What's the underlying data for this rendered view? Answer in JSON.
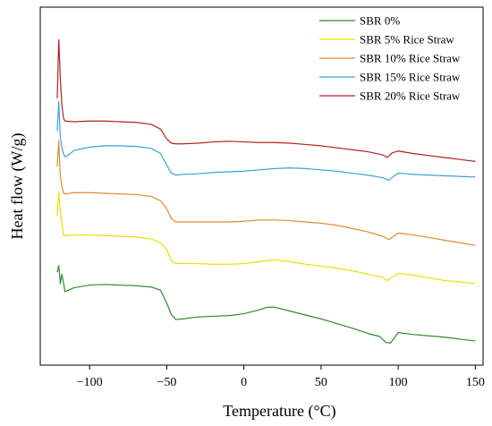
{
  "chart_data": {
    "type": "line",
    "title": "",
    "xlabel": "Temperature (°C)",
    "ylabel": "Heat flow (W/g)",
    "xlim": [
      -132,
      155
    ],
    "y_ticks_shown": false,
    "x_ticks": [
      -100,
      -50,
      0,
      50,
      100,
      150
    ],
    "legend_position": "top-right",
    "grid": false,
    "series": [
      {
        "name": "SBR 0%",
        "color": "#2e8b2e",
        "points": [
          [
            -121,
            0.66
          ],
          [
            -120,
            0.86
          ],
          [
            -119,
            0.3
          ],
          [
            -118,
            0.6
          ],
          [
            -117,
            0.35
          ],
          [
            -116,
            0.06
          ],
          [
            -110,
            0.18
          ],
          [
            -100,
            0.26
          ],
          [
            -90,
            0.28
          ],
          [
            -80,
            0.26
          ],
          [
            -70,
            0.24
          ],
          [
            -60,
            0.2
          ],
          [
            -54,
            0.1
          ],
          [
            -50,
            -0.3
          ],
          [
            -47,
            -0.65
          ],
          [
            -44,
            -0.8
          ],
          [
            -40,
            -0.78
          ],
          [
            -30,
            -0.72
          ],
          [
            -20,
            -0.7
          ],
          [
            -10,
            -0.68
          ],
          [
            0,
            -0.62
          ],
          [
            10,
            -0.5
          ],
          [
            15,
            -0.42
          ],
          [
            20,
            -0.42
          ],
          [
            30,
            -0.54
          ],
          [
            40,
            -0.66
          ],
          [
            50,
            -0.78
          ],
          [
            60,
            -0.92
          ],
          [
            70,
            -1.06
          ],
          [
            80,
            -1.22
          ],
          [
            88,
            -1.32
          ],
          [
            92,
            -1.5
          ],
          [
            95,
            -1.52
          ],
          [
            97,
            -1.4
          ],
          [
            100,
            -1.2
          ],
          [
            110,
            -1.26
          ],
          [
            120,
            -1.3
          ],
          [
            130,
            -1.34
          ],
          [
            140,
            -1.4
          ],
          [
            150,
            -1.46
          ]
        ]
      },
      {
        "name": "SBR 5% Rice Straw",
        "color": "#e8e000",
        "points": [
          [
            -121,
            2.4
          ],
          [
            -120,
            3.1
          ],
          [
            -119,
            2.5
          ],
          [
            -118,
            2.2
          ],
          [
            -117,
            1.8
          ],
          [
            -116,
            1.78
          ],
          [
            -110,
            1.8
          ],
          [
            -100,
            1.8
          ],
          [
            -90,
            1.78
          ],
          [
            -80,
            1.76
          ],
          [
            -70,
            1.74
          ],
          [
            -60,
            1.68
          ],
          [
            -54,
            1.55
          ],
          [
            -50,
            1.35
          ],
          [
            -47,
            1.0
          ],
          [
            -44,
            0.92
          ],
          [
            -40,
            0.92
          ],
          [
            -30,
            0.92
          ],
          [
            -20,
            0.9
          ],
          [
            -10,
            0.9
          ],
          [
            0,
            0.92
          ],
          [
            10,
            0.98
          ],
          [
            20,
            1.04
          ],
          [
            30,
            0.98
          ],
          [
            40,
            0.9
          ],
          [
            50,
            0.84
          ],
          [
            60,
            0.78
          ],
          [
            70,
            0.7
          ],
          [
            80,
            0.6
          ],
          [
            90,
            0.5
          ],
          [
            93,
            0.4
          ],
          [
            96,
            0.5
          ],
          [
            100,
            0.62
          ],
          [
            110,
            0.56
          ],
          [
            120,
            0.48
          ],
          [
            130,
            0.4
          ],
          [
            140,
            0.36
          ],
          [
            150,
            0.3
          ]
        ]
      },
      {
        "name": "SBR 10% Rice Straw",
        "color": "#e08a30",
        "points": [
          [
            -121,
            3.9
          ],
          [
            -120,
            4.7
          ],
          [
            -119,
            3.6
          ],
          [
            -118,
            3.3
          ],
          [
            -117,
            3.1
          ],
          [
            -116,
            3.06
          ],
          [
            -110,
            3.1
          ],
          [
            -100,
            3.1
          ],
          [
            -90,
            3.08
          ],
          [
            -80,
            3.06
          ],
          [
            -70,
            3.04
          ],
          [
            -60,
            2.98
          ],
          [
            -54,
            2.85
          ],
          [
            -50,
            2.6
          ],
          [
            -47,
            2.3
          ],
          [
            -44,
            2.2
          ],
          [
            -40,
            2.2
          ],
          [
            -30,
            2.2
          ],
          [
            -20,
            2.2
          ],
          [
            -10,
            2.2
          ],
          [
            0,
            2.22
          ],
          [
            10,
            2.26
          ],
          [
            20,
            2.26
          ],
          [
            30,
            2.24
          ],
          [
            40,
            2.2
          ],
          [
            50,
            2.16
          ],
          [
            60,
            2.1
          ],
          [
            70,
            2.0
          ],
          [
            80,
            1.9
          ],
          [
            90,
            1.76
          ],
          [
            94,
            1.66
          ],
          [
            97,
            1.76
          ],
          [
            100,
            1.86
          ],
          [
            110,
            1.8
          ],
          [
            120,
            1.72
          ],
          [
            130,
            1.64
          ],
          [
            140,
            1.56
          ],
          [
            150,
            1.48
          ]
        ]
      },
      {
        "name": "SBR 15% Rice Straw",
        "color": "#3ba3dc",
        "points": [
          [
            -121,
            5.0
          ],
          [
            -120,
            5.9
          ],
          [
            -119,
            4.8
          ],
          [
            -118,
            4.5
          ],
          [
            -117,
            4.3
          ],
          [
            -116,
            4.2
          ],
          [
            -114,
            4.25
          ],
          [
            -110,
            4.4
          ],
          [
            -100,
            4.5
          ],
          [
            -90,
            4.54
          ],
          [
            -80,
            4.54
          ],
          [
            -70,
            4.52
          ],
          [
            -60,
            4.46
          ],
          [
            -54,
            4.3
          ],
          [
            -50,
            3.95
          ],
          [
            -47,
            3.7
          ],
          [
            -44,
            3.64
          ],
          [
            -40,
            3.66
          ],
          [
            -30,
            3.68
          ],
          [
            -20,
            3.72
          ],
          [
            -10,
            3.74
          ],
          [
            0,
            3.76
          ],
          [
            10,
            3.8
          ],
          [
            20,
            3.84
          ],
          [
            30,
            3.86
          ],
          [
            40,
            3.84
          ],
          [
            50,
            3.8
          ],
          [
            60,
            3.76
          ],
          [
            70,
            3.7
          ],
          [
            80,
            3.64
          ],
          [
            90,
            3.56
          ],
          [
            94,
            3.48
          ],
          [
            97,
            3.6
          ],
          [
            100,
            3.7
          ],
          [
            110,
            3.66
          ],
          [
            120,
            3.64
          ],
          [
            130,
            3.62
          ],
          [
            140,
            3.6
          ],
          [
            150,
            3.58
          ]
        ]
      },
      {
        "name": "SBR 20% Rice Straw",
        "color": "#b22222",
        "points": [
          [
            -121,
            6.0
          ],
          [
            -120,
            7.8
          ],
          [
            -119,
            6.6
          ],
          [
            -118,
            5.8
          ],
          [
            -117,
            5.4
          ],
          [
            -116,
            5.3
          ],
          [
            -110,
            5.28
          ],
          [
            -100,
            5.3
          ],
          [
            -90,
            5.3
          ],
          [
            -80,
            5.28
          ],
          [
            -70,
            5.26
          ],
          [
            -60,
            5.2
          ],
          [
            -54,
            5.05
          ],
          [
            -50,
            4.75
          ],
          [
            -47,
            4.62
          ],
          [
            -44,
            4.6
          ],
          [
            -40,
            4.6
          ],
          [
            -30,
            4.62
          ],
          [
            -20,
            4.66
          ],
          [
            -10,
            4.68
          ],
          [
            0,
            4.66
          ],
          [
            10,
            4.64
          ],
          [
            20,
            4.64
          ],
          [
            30,
            4.62
          ],
          [
            40,
            4.58
          ],
          [
            50,
            4.54
          ],
          [
            60,
            4.48
          ],
          [
            70,
            4.42
          ],
          [
            80,
            4.36
          ],
          [
            90,
            4.26
          ],
          [
            93,
            4.18
          ],
          [
            96,
            4.32
          ],
          [
            100,
            4.38
          ],
          [
            110,
            4.3
          ],
          [
            120,
            4.24
          ],
          [
            130,
            4.18
          ],
          [
            140,
            4.12
          ],
          [
            150,
            4.06
          ]
        ]
      }
    ]
  }
}
